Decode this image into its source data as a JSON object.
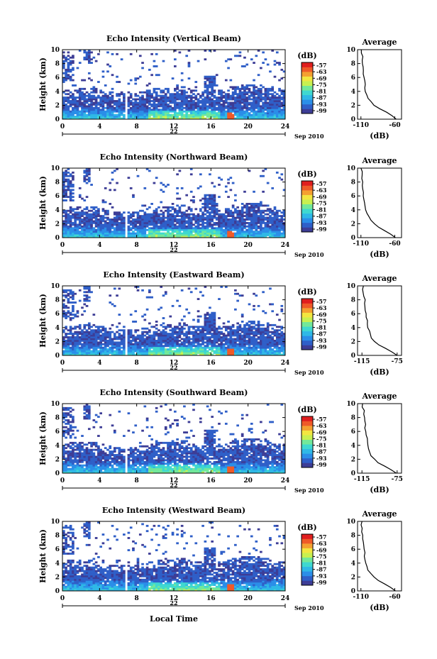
{
  "figure": {
    "date_label": "Sep 2010",
    "day_label": "22",
    "xlabel": "Local Time",
    "colorbar_unit": "(dB)",
    "average_title": "Average",
    "average_xlabel": "(dB)",
    "colorscale": [
      "#3d3d96",
      "#2f5fc8",
      "#2b8ee8",
      "#2fb8e6",
      "#3fd8d0",
      "#72e89a",
      "#c8f050",
      "#f2e640",
      "#f4a030",
      "#ef5a28",
      "#e01e1e"
    ]
  },
  "chart_data": [
    {
      "type": "heatmap",
      "title": "Echo Intensity (Vertical Beam)",
      "ylabel": "Height (km)",
      "xlim": [
        0,
        24
      ],
      "ylim": [
        0,
        10
      ],
      "x_ticks": [
        0,
        4,
        8,
        12,
        16,
        20,
        24
      ],
      "y_ticks": [
        0,
        2,
        4,
        6,
        8,
        10
      ],
      "colorbar_ticks": [
        -57,
        -63,
        -69,
        -75,
        -81,
        -87,
        -93,
        -99
      ],
      "average": {
        "xlim": [
          -115,
          -50
        ],
        "xticks": [
          -110,
          -60
        ],
        "height": [
          0,
          0.5,
          1,
          1.5,
          2,
          2.5,
          3,
          3.5,
          4,
          4.5,
          5,
          5.5,
          6,
          6.5,
          7,
          7.5,
          8,
          8.5,
          9,
          9.5,
          10
        ],
        "value": [
          -58,
          -64,
          -72,
          -82,
          -90,
          -95,
          -99,
          -101,
          -103,
          -104,
          -104,
          -105,
          -106,
          -106,
          -107,
          -107,
          -107,
          -108,
          -108,
          -109,
          -109
        ]
      }
    },
    {
      "type": "heatmap",
      "title": "Echo Intensity (Northward Beam)",
      "ylabel": "Height (km)",
      "xlim": [
        0,
        24
      ],
      "ylim": [
        0,
        10
      ],
      "x_ticks": [
        0,
        4,
        8,
        12,
        16,
        20,
        24
      ],
      "y_ticks": [
        0,
        2,
        4,
        6,
        8,
        10
      ],
      "colorbar_ticks": [
        -57,
        -63,
        -69,
        -75,
        -81,
        -87,
        -93,
        -99
      ],
      "average": {
        "xlim": [
          -115,
          -50
        ],
        "xticks": [
          -110,
          -60
        ],
        "height": [
          0,
          0.5,
          1,
          1.5,
          2,
          2.5,
          3,
          3.5,
          4,
          4.5,
          5,
          5.5,
          6,
          6.5,
          7,
          7.5,
          8,
          8.5,
          9,
          9.5,
          10
        ],
        "value": [
          -59,
          -66,
          -75,
          -84,
          -91,
          -96,
          -99,
          -101,
          -103,
          -104,
          -104,
          -105,
          -106,
          -106,
          -107,
          -107,
          -107,
          -108,
          -108,
          -109,
          -109
        ]
      }
    },
    {
      "type": "heatmap",
      "title": "Echo Intensity (Eastward Beam)",
      "ylabel": "Height (km)",
      "xlim": [
        0,
        24
      ],
      "ylim": [
        0,
        10
      ],
      "x_ticks": [
        0,
        4,
        8,
        12,
        16,
        20,
        24
      ],
      "y_ticks": [
        0,
        2,
        4,
        6,
        8,
        10
      ],
      "colorbar_ticks": [
        -57,
        -63,
        -69,
        -75,
        -81,
        -87,
        -93,
        -99
      ],
      "average": {
        "xlim": [
          -120,
          -70
        ],
        "xticks": [
          -115,
          -75
        ],
        "height": [
          0,
          0.5,
          1,
          1.5,
          2,
          2.5,
          3,
          3.5,
          4,
          4.5,
          5,
          5.5,
          6,
          6.5,
          7,
          7.5,
          8,
          8.5,
          9,
          9.5,
          10
        ],
        "value": [
          -75,
          -81,
          -88,
          -95,
          -100,
          -104,
          -106,
          -107,
          -108,
          -109,
          -109,
          -110,
          -110,
          -111,
          -111,
          -112,
          -112,
          -113,
          -113,
          -114,
          -114
        ]
      }
    },
    {
      "type": "heatmap",
      "title": "Echo Intensity (Southward Beam)",
      "ylabel": "Height (km)",
      "xlim": [
        0,
        24
      ],
      "ylim": [
        0,
        10
      ],
      "x_ticks": [
        0,
        4,
        8,
        12,
        16,
        20,
        24
      ],
      "y_ticks": [
        0,
        2,
        4,
        6,
        8,
        10
      ],
      "colorbar_ticks": [
        -57,
        -63,
        -69,
        -75,
        -81,
        -87,
        -93,
        -99
      ],
      "average": {
        "xlim": [
          -120,
          -70
        ],
        "xticks": [
          -115,
          -75
        ],
        "height": [
          0,
          0.5,
          1,
          1.5,
          2,
          2.5,
          3,
          3.5,
          4,
          4.5,
          5,
          5.5,
          6,
          6.5,
          7,
          7.5,
          8,
          8.5,
          9,
          9.5,
          10
        ],
        "value": [
          -76,
          -82,
          -89,
          -96,
          -101,
          -104,
          -106,
          -107,
          -108,
          -109,
          -109,
          -110,
          -110,
          -111,
          -111,
          -112,
          -112,
          -113,
          -113,
          -114,
          -114
        ]
      }
    },
    {
      "type": "heatmap",
      "title": "Echo Intensity (Westward Beam)",
      "ylabel": "Height (km)",
      "xlim": [
        0,
        24
      ],
      "ylim": [
        0,
        10
      ],
      "x_ticks": [
        0,
        4,
        8,
        12,
        16,
        20,
        24
      ],
      "y_ticks": [
        0,
        2,
        4,
        6,
        8,
        10
      ],
      "colorbar_ticks": [
        -57,
        -63,
        -69,
        -75,
        -81,
        -87,
        -93,
        -99
      ],
      "average": {
        "xlim": [
          -115,
          -50
        ],
        "xticks": [
          -110,
          -60
        ],
        "height": [
          0,
          0.5,
          1,
          1.5,
          2,
          2.5,
          3,
          3.5,
          4,
          4.5,
          5,
          5.5,
          6,
          6.5,
          7,
          7.5,
          8,
          8.5,
          9,
          9.5,
          10
        ],
        "value": [
          -59,
          -66,
          -75,
          -84,
          -91,
          -96,
          -99,
          -101,
          -103,
          -104,
          -104,
          -105,
          -106,
          -106,
          -107,
          -107,
          -107,
          -108,
          -108,
          -109,
          -109
        ]
      }
    }
  ]
}
